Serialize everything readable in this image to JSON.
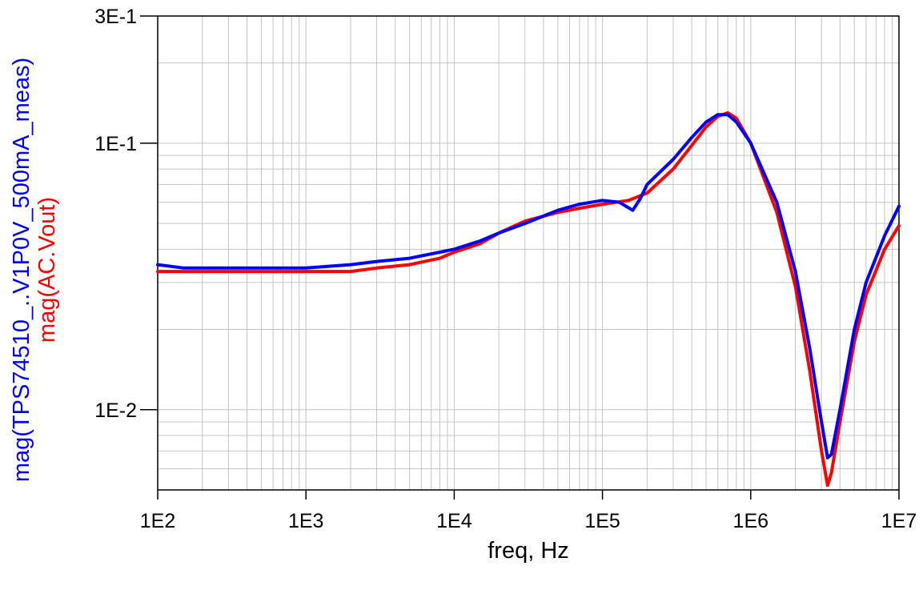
{
  "chart_data": {
    "type": "line",
    "xlabel": "freq, Hz",
    "xscale": "log",
    "yscale": "log",
    "xlim": [
      100,
      10000000
    ],
    "ylim": [
      0.005,
      0.3
    ],
    "x_ticks": [
      {
        "value": 100,
        "label": "1E2"
      },
      {
        "value": 1000,
        "label": "1E3"
      },
      {
        "value": 10000,
        "label": "1E4"
      },
      {
        "value": 100000,
        "label": "1E5"
      },
      {
        "value": 1000000,
        "label": "1E6"
      },
      {
        "value": 10000000,
        "label": "1E7"
      }
    ],
    "y_ticks": [
      {
        "value": 0.01,
        "label": "1E-2"
      },
      {
        "value": 0.1,
        "label": "1E-1"
      },
      {
        "value": 0.3,
        "label": "3E-1"
      }
    ],
    "grid": true,
    "series": [
      {
        "name": "mag(TPS74510_..V1P0V_500mA_meas)",
        "color": "#0000ff",
        "points": [
          [
            100,
            0.035
          ],
          [
            150,
            0.034
          ],
          [
            200,
            0.034
          ],
          [
            300,
            0.034
          ],
          [
            500,
            0.034
          ],
          [
            1000,
            0.034
          ],
          [
            2000,
            0.035
          ],
          [
            3000,
            0.036
          ],
          [
            5000,
            0.037
          ],
          [
            8000,
            0.039
          ],
          [
            10000,
            0.04
          ],
          [
            15000,
            0.043
          ],
          [
            20000,
            0.046
          ],
          [
            30000,
            0.05
          ],
          [
            50000,
            0.056
          ],
          [
            70000,
            0.059
          ],
          [
            100000,
            0.061
          ],
          [
            130000,
            0.06
          ],
          [
            160000,
            0.056
          ],
          [
            180000,
            0.062
          ],
          [
            200000,
            0.07
          ],
          [
            300000,
            0.087
          ],
          [
            400000,
            0.105
          ],
          [
            500000,
            0.12
          ],
          [
            600000,
            0.128
          ],
          [
            700000,
            0.128
          ],
          [
            800000,
            0.12
          ],
          [
            1000000,
            0.1
          ],
          [
            1500000,
            0.06
          ],
          [
            2000000,
            0.033
          ],
          [
            2500000,
            0.017
          ],
          [
            3000000,
            0.009
          ],
          [
            3300000,
            0.0066
          ],
          [
            3500000,
            0.0068
          ],
          [
            4000000,
            0.01
          ],
          [
            5000000,
            0.02
          ],
          [
            6000000,
            0.03
          ],
          [
            8000000,
            0.045
          ],
          [
            10000000,
            0.058
          ]
        ]
      },
      {
        "name": "mag(AC.Vout)",
        "color": "#ff0000",
        "points": [
          [
            100,
            0.033
          ],
          [
            200,
            0.033
          ],
          [
            500,
            0.033
          ],
          [
            1000,
            0.033
          ],
          [
            2000,
            0.033
          ],
          [
            3000,
            0.034
          ],
          [
            5000,
            0.035
          ],
          [
            8000,
            0.037
          ],
          [
            10000,
            0.039
          ],
          [
            15000,
            0.042
          ],
          [
            20000,
            0.046
          ],
          [
            30000,
            0.051
          ],
          [
            50000,
            0.055
          ],
          [
            70000,
            0.057
          ],
          [
            100000,
            0.059
          ],
          [
            150000,
            0.061
          ],
          [
            200000,
            0.065
          ],
          [
            300000,
            0.08
          ],
          [
            400000,
            0.098
          ],
          [
            500000,
            0.115
          ],
          [
            600000,
            0.126
          ],
          [
            700000,
            0.13
          ],
          [
            800000,
            0.124
          ],
          [
            1000000,
            0.1
          ],
          [
            1500000,
            0.055
          ],
          [
            2000000,
            0.029
          ],
          [
            2500000,
            0.014
          ],
          [
            3000000,
            0.007
          ],
          [
            3300000,
            0.0052
          ],
          [
            3500000,
            0.0058
          ],
          [
            4000000,
            0.009
          ],
          [
            5000000,
            0.018
          ],
          [
            6000000,
            0.027
          ],
          [
            8000000,
            0.04
          ],
          [
            10000000,
            0.049
          ]
        ]
      }
    ]
  }
}
